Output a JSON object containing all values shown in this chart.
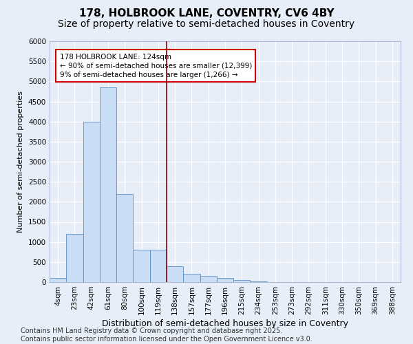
{
  "title_line1": "178, HOLBROOK LANE, COVENTRY, CV6 4BY",
  "title_line2": "Size of property relative to semi-detached houses in Coventry",
  "xlabel": "Distribution of semi-detached houses by size in Coventry",
  "ylabel": "Number of semi-detached properties",
  "categories": [
    "4sqm",
    "23sqm",
    "42sqm",
    "61sqm",
    "80sqm",
    "100sqm",
    "119sqm",
    "138sqm",
    "157sqm",
    "177sqm",
    "196sqm",
    "215sqm",
    "234sqm",
    "253sqm",
    "273sqm",
    "292sqm",
    "311sqm",
    "330sqm",
    "350sqm",
    "369sqm",
    "388sqm"
  ],
  "values": [
    100,
    1200,
    4000,
    4850,
    2200,
    800,
    800,
    400,
    200,
    150,
    100,
    50,
    10,
    5,
    2,
    1,
    0,
    0,
    0,
    0,
    0
  ],
  "bar_color": "#c9ddf5",
  "bar_edge_color": "#5b8fc9",
  "red_line_x": 6.5,
  "annotation_text": "178 HOLBROOK LANE: 124sqm\n← 90% of semi-detached houses are smaller (12,399)\n9% of semi-detached houses are larger (1,266) →",
  "ylim": [
    0,
    6000
  ],
  "yticks": [
    0,
    500,
    1000,
    1500,
    2000,
    2500,
    3000,
    3500,
    4000,
    4500,
    5000,
    5500,
    6000
  ],
  "footer": "Contains HM Land Registry data © Crown copyright and database right 2025.\nContains public sector information licensed under the Open Government Licence v3.0.",
  "background_color": "#e8eef8",
  "plot_background": "#e8eef8",
  "grid_color": "#ffffff",
  "title_fontsize": 11,
  "subtitle_fontsize": 10,
  "xlabel_fontsize": 9,
  "ylabel_fontsize": 8,
  "tick_fontsize": 7.5,
  "footer_fontsize": 7
}
